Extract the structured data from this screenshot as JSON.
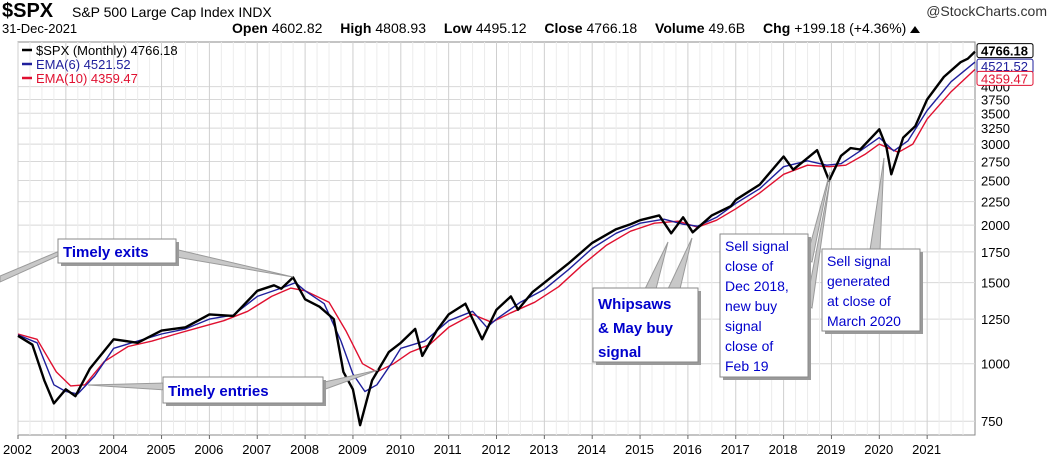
{
  "header": {
    "ticker": "$SPX",
    "name": "S&P 500 Large Cap Index",
    "exchange": "INDX",
    "brand": "@StockCharts.com",
    "date": "31-Dec-2021",
    "open_label": "Open",
    "open": "4602.82",
    "high_label": "High",
    "high": "4808.93",
    "low_label": "Low",
    "low": "4495.12",
    "close_label": "Close",
    "close": "4766.18",
    "volume_label": "Volume",
    "volume": "49.6B",
    "chg_label": "Chg",
    "chg": "+199.18 (+4.36%)"
  },
  "colors": {
    "price": "#000000",
    "ema6": "#1f1f9c",
    "ema10": "#e01030",
    "grid": "#d8d8d8"
  },
  "chart_data": {
    "type": "line",
    "yscale": "log",
    "ylim": [
      700,
      5000
    ],
    "xlim": [
      2002.0,
      2022.0
    ],
    "y_ticks": [
      750,
      1000,
      1250,
      1500,
      1750,
      2000,
      2250,
      2500,
      2750,
      3000,
      3250,
      3500,
      3750,
      4000
    ],
    "x_ticks": [
      "2002",
      "2003",
      "2004",
      "2005",
      "2006",
      "2007",
      "2008",
      "2009",
      "2010",
      "2011",
      "2012",
      "2013",
      "2014",
      "2015",
      "2016",
      "2017",
      "2018",
      "2019",
      "2020",
      "2021"
    ],
    "legend": [
      {
        "label": "$SPX (Monthly) 4766.18",
        "color": "#000000"
      },
      {
        "label": "EMA(6) 4521.52",
        "color": "#1f1f9c"
      },
      {
        "label": "EMA(10) 4359.47",
        "color": "#e01030"
      }
    ],
    "last_labels": [
      {
        "text": "4766.18",
        "value": 4766.18,
        "color": "#000000"
      },
      {
        "text": "4521.52",
        "value": 4521.52,
        "color": "#1f1f9c"
      },
      {
        "text": "4359.47",
        "value": 4359.47,
        "color": "#e01030"
      }
    ],
    "series": [
      {
        "name": "$SPX (Monthly)",
        "color": "#000000",
        "points": [
          [
            2002.0,
            1150
          ],
          [
            2002.3,
            1100
          ],
          [
            2002.55,
            920
          ],
          [
            2002.75,
            820
          ],
          [
            2003.0,
            880
          ],
          [
            2003.2,
            850
          ],
          [
            2003.5,
            975
          ],
          [
            2004.0,
            1130
          ],
          [
            2004.5,
            1110
          ],
          [
            2005.0,
            1180
          ],
          [
            2005.5,
            1200
          ],
          [
            2006.0,
            1280
          ],
          [
            2006.5,
            1270
          ],
          [
            2007.0,
            1440
          ],
          [
            2007.35,
            1480
          ],
          [
            2007.5,
            1455
          ],
          [
            2007.75,
            1540
          ],
          [
            2008.0,
            1380
          ],
          [
            2008.3,
            1330
          ],
          [
            2008.6,
            1250
          ],
          [
            2008.8,
            960
          ],
          [
            2009.0,
            880
          ],
          [
            2009.15,
            735
          ],
          [
            2009.4,
            920
          ],
          [
            2009.75,
            1060
          ],
          [
            2010.0,
            1110
          ],
          [
            2010.3,
            1190
          ],
          [
            2010.45,
            1040
          ],
          [
            2010.75,
            1180
          ],
          [
            2011.0,
            1280
          ],
          [
            2011.35,
            1350
          ],
          [
            2011.7,
            1130
          ],
          [
            2012.0,
            1310
          ],
          [
            2012.3,
            1400
          ],
          [
            2012.45,
            1310
          ],
          [
            2012.75,
            1430
          ],
          [
            2013.0,
            1500
          ],
          [
            2013.5,
            1650
          ],
          [
            2014.0,
            1830
          ],
          [
            2014.5,
            1960
          ],
          [
            2014.8,
            2010
          ],
          [
            2015.0,
            2050
          ],
          [
            2015.4,
            2100
          ],
          [
            2015.65,
            1920
          ],
          [
            2015.9,
            2080
          ],
          [
            2016.1,
            1930
          ],
          [
            2016.5,
            2100
          ],
          [
            2016.9,
            2200
          ],
          [
            2017.0,
            2270
          ],
          [
            2017.5,
            2450
          ],
          [
            2018.0,
            2820
          ],
          [
            2018.2,
            2640
          ],
          [
            2018.7,
            2910
          ],
          [
            2018.95,
            2500
          ],
          [
            2019.2,
            2830
          ],
          [
            2019.4,
            2940
          ],
          [
            2019.6,
            2920
          ],
          [
            2020.0,
            3230
          ],
          [
            2020.15,
            2950
          ],
          [
            2020.25,
            2580
          ],
          [
            2020.5,
            3100
          ],
          [
            2020.75,
            3280
          ],
          [
            2021.0,
            3750
          ],
          [
            2021.35,
            4200
          ],
          [
            2021.7,
            4520
          ],
          [
            2021.85,
            4600
          ],
          [
            2022.0,
            4766
          ]
        ]
      },
      {
        "name": "EMA(6)",
        "color": "#1f1f9c",
        "points": [
          [
            2002.0,
            1155
          ],
          [
            2002.4,
            1110
          ],
          [
            2002.75,
            900
          ],
          [
            2003.0,
            870
          ],
          [
            2003.25,
            860
          ],
          [
            2003.6,
            940
          ],
          [
            2004.0,
            1080
          ],
          [
            2004.5,
            1120
          ],
          [
            2005.0,
            1160
          ],
          [
            2005.5,
            1190
          ],
          [
            2006.0,
            1250
          ],
          [
            2006.5,
            1275
          ],
          [
            2007.0,
            1400
          ],
          [
            2007.5,
            1460
          ],
          [
            2007.8,
            1500
          ],
          [
            2008.0,
            1440
          ],
          [
            2008.4,
            1350
          ],
          [
            2008.75,
            1120
          ],
          [
            2009.0,
            950
          ],
          [
            2009.25,
            870
          ],
          [
            2009.5,
            900
          ],
          [
            2009.8,
            1000
          ],
          [
            2010.0,
            1080
          ],
          [
            2010.5,
            1120
          ],
          [
            2011.0,
            1240
          ],
          [
            2011.5,
            1300
          ],
          [
            2011.8,
            1200
          ],
          [
            2012.0,
            1250
          ],
          [
            2012.5,
            1360
          ],
          [
            2013.0,
            1450
          ],
          [
            2013.5,
            1600
          ],
          [
            2014.0,
            1780
          ],
          [
            2014.5,
            1920
          ],
          [
            2015.0,
            2020
          ],
          [
            2015.5,
            2060
          ],
          [
            2015.9,
            2010
          ],
          [
            2016.2,
            1990
          ],
          [
            2016.6,
            2080
          ],
          [
            2017.0,
            2230
          ],
          [
            2017.5,
            2400
          ],
          [
            2018.0,
            2680
          ],
          [
            2018.5,
            2760
          ],
          [
            2018.9,
            2700
          ],
          [
            2019.2,
            2720
          ],
          [
            2019.6,
            2900
          ],
          [
            2020.0,
            3100
          ],
          [
            2020.3,
            2900
          ],
          [
            2020.6,
            3050
          ],
          [
            2021.0,
            3550
          ],
          [
            2021.5,
            4100
          ],
          [
            2022.0,
            4521
          ]
        ]
      },
      {
        "name": "EMA(10)",
        "color": "#e01030",
        "points": [
          [
            2002.0,
            1160
          ],
          [
            2002.4,
            1130
          ],
          [
            2002.8,
            960
          ],
          [
            2003.1,
            895
          ],
          [
            2003.4,
            900
          ],
          [
            2003.8,
            1010
          ],
          [
            2004.3,
            1090
          ],
          [
            2004.8,
            1120
          ],
          [
            2005.3,
            1160
          ],
          [
            2005.8,
            1200
          ],
          [
            2006.3,
            1240
          ],
          [
            2006.8,
            1300
          ],
          [
            2007.3,
            1400
          ],
          [
            2007.7,
            1460
          ],
          [
            2008.0,
            1440
          ],
          [
            2008.5,
            1360
          ],
          [
            2008.85,
            1180
          ],
          [
            2009.2,
            1000
          ],
          [
            2009.5,
            960
          ],
          [
            2009.85,
            1000
          ],
          [
            2010.2,
            1060
          ],
          [
            2010.6,
            1100
          ],
          [
            2011.0,
            1200
          ],
          [
            2011.5,
            1280
          ],
          [
            2011.9,
            1230
          ],
          [
            2012.3,
            1290
          ],
          [
            2012.8,
            1360
          ],
          [
            2013.3,
            1470
          ],
          [
            2013.8,
            1640
          ],
          [
            2014.3,
            1810
          ],
          [
            2014.8,
            1940
          ],
          [
            2015.3,
            2020
          ],
          [
            2015.8,
            2040
          ],
          [
            2016.2,
            1980
          ],
          [
            2016.6,
            2050
          ],
          [
            2017.0,
            2170
          ],
          [
            2017.5,
            2350
          ],
          [
            2018.0,
            2580
          ],
          [
            2018.5,
            2700
          ],
          [
            2018.95,
            2680
          ],
          [
            2019.3,
            2700
          ],
          [
            2019.7,
            2850
          ],
          [
            2020.0,
            3000
          ],
          [
            2020.4,
            2880
          ],
          [
            2020.7,
            3000
          ],
          [
            2021.0,
            3400
          ],
          [
            2021.5,
            3900
          ],
          [
            2022.0,
            4359
          ]
        ]
      }
    ],
    "annotations": [
      {
        "text": "Timely exits",
        "lines": [
          "Timely exits"
        ]
      },
      {
        "text": "Timely entries",
        "lines": [
          "Timely entries"
        ]
      },
      {
        "text": "Whipsaws & May buy signal",
        "lines": [
          "Whipsaws",
          "& May buy",
          "signal"
        ]
      },
      {
        "text": "Sell signal close of Dec 2018, new buy signal close of Feb 19",
        "lines": [
          "Sell signal",
          "close of",
          "Dec 2018,",
          "new buy",
          "signal",
          "close of",
          "Feb 19"
        ]
      },
      {
        "text": "Sell signal generated at close of March 2020",
        "lines": [
          "Sell signal",
          "generated",
          "at close of",
          "March 2020"
        ]
      }
    ]
  }
}
